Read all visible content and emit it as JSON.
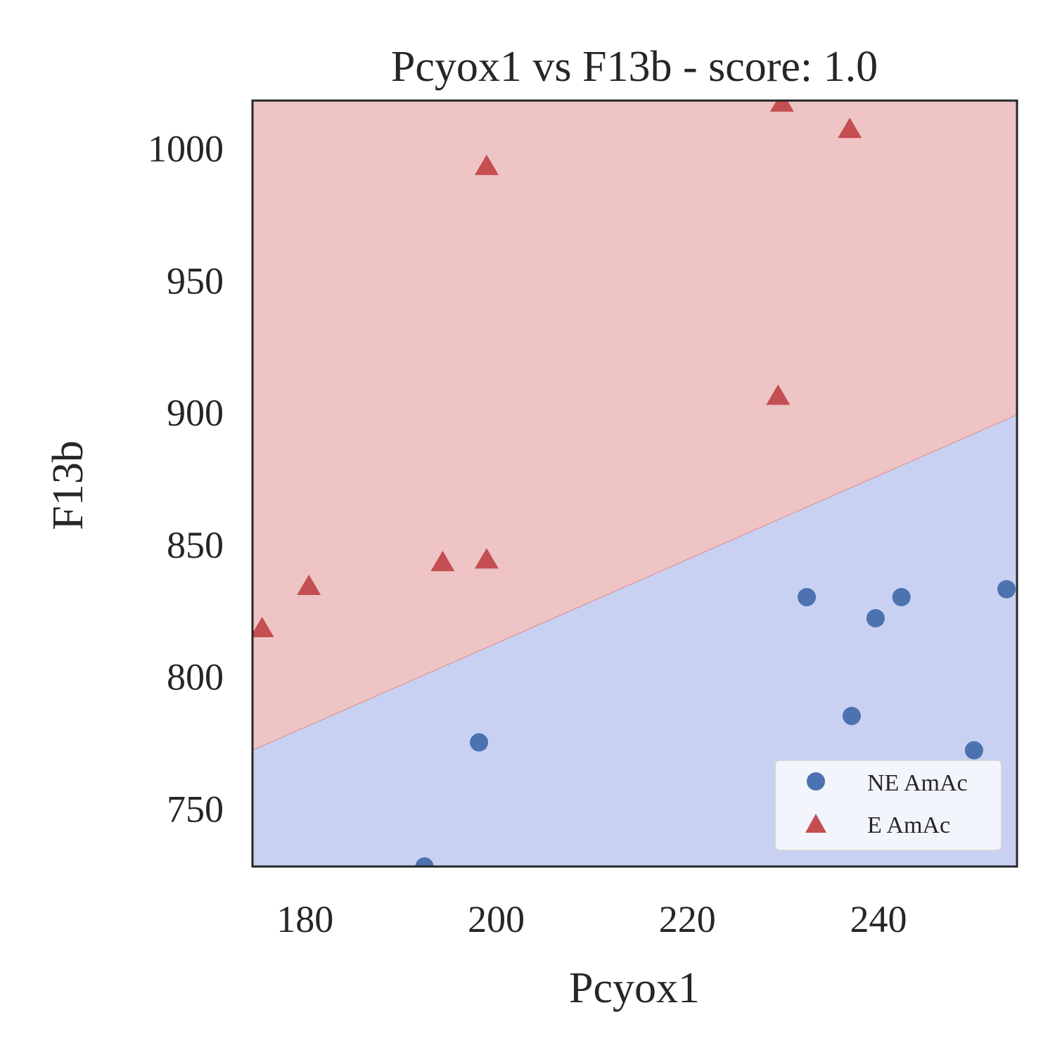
{
  "chart_data": {
    "type": "scatter",
    "title": "Pcyox1 vs F13b - score: 1.0",
    "xlabel": "Pcyox1",
    "ylabel": "F13b",
    "xlim": [
      174.5,
      254.5
    ],
    "ylim": [
      728,
      1018
    ],
    "xticks": [
      180,
      200,
      220,
      240
    ],
    "yticks": [
      750,
      800,
      850,
      900,
      950,
      1000
    ],
    "grid": false,
    "legend_position": "lower-right",
    "decision_boundary": {
      "points": [
        [
          174.5,
          772
        ],
        [
          254.5,
          899
        ]
      ],
      "above_class": "E AmAc",
      "below_class": "NE AmAc",
      "above_color": "#eec4c4",
      "below_color": "#c8d1f2"
    },
    "series": [
      {
        "name": "NE AmAc",
        "marker": "circle",
        "color": "#4c72b0",
        "points": [
          [
            192.5,
            728
          ],
          [
            198.2,
            775
          ],
          [
            232.5,
            830
          ],
          [
            237.2,
            785
          ],
          [
            239.7,
            822
          ],
          [
            242.4,
            830
          ],
          [
            250.0,
            772
          ],
          [
            253.4,
            833
          ]
        ]
      },
      {
        "name": "E AmAc",
        "marker": "triangle",
        "color": "#c44e52",
        "points": [
          [
            175.5,
            818
          ],
          [
            180.4,
            834
          ],
          [
            194.4,
            843
          ],
          [
            199.0,
            844
          ],
          [
            199.0,
            993
          ],
          [
            229.5,
            906
          ],
          [
            229.9,
            1017
          ],
          [
            237.0,
            1007
          ]
        ]
      }
    ]
  }
}
